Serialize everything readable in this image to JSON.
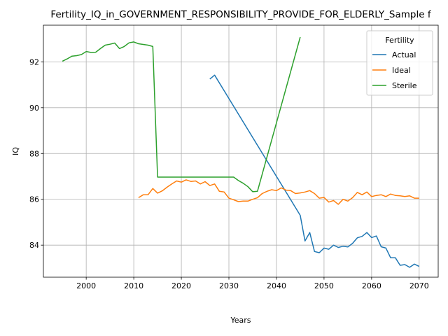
{
  "chart_data": {
    "type": "line",
    "title": "Fertility_IQ_in_GOVERNMENT_RESPONSIBILITY_PROVIDE_FOR_ELDERLY_Sample f",
    "xlabel": "Years",
    "ylabel": "IQ",
    "xlim": [
      1991,
      2074
    ],
    "ylim": [
      82.6,
      93.6
    ],
    "xticks": [
      2000,
      2010,
      2020,
      2030,
      2040,
      2050,
      2060,
      2070
    ],
    "yticks": [
      84,
      86,
      88,
      90,
      92
    ],
    "grid": true,
    "legend": {
      "title": "Fertility",
      "placement": "top-right"
    },
    "series": [
      {
        "name": "Actual",
        "color": "#1f77b4",
        "x": [
          2026,
          2027,
          2045,
          2046,
          2047,
          2048,
          2049,
          2050,
          2051,
          2052,
          2053,
          2054,
          2055,
          2056,
          2057,
          2058,
          2059,
          2060,
          2061,
          2062,
          2063,
          2064,
          2065,
          2066,
          2067,
          2068,
          2069,
          2070
        ],
        "y": [
          91.25,
          91.42,
          85.3,
          84.18,
          84.55,
          83.72,
          83.67,
          83.87,
          83.82,
          84.0,
          83.9,
          83.95,
          83.92,
          84.08,
          84.32,
          84.38,
          84.55,
          84.33,
          84.4,
          83.93,
          83.87,
          83.45,
          83.45,
          83.12,
          83.15,
          83.03,
          83.17,
          83.07
        ]
      },
      {
        "name": "Ideal",
        "color": "#ff7f0e",
        "x": [
          2011,
          2012,
          2013,
          2014,
          2015,
          2016,
          2017,
          2018,
          2019,
          2020,
          2021,
          2022,
          2023,
          2024,
          2025,
          2026,
          2027,
          2028,
          2029,
          2030,
          2031,
          2032,
          2033,
          2034,
          2035,
          2036,
          2037,
          2038,
          2039,
          2040,
          2041,
          2042,
          2043,
          2044,
          2045,
          2046,
          2047,
          2048,
          2049,
          2050,
          2051,
          2052,
          2053,
          2054,
          2055,
          2056,
          2057,
          2058,
          2059,
          2060,
          2061,
          2062,
          2063,
          2064,
          2065,
          2066,
          2067,
          2068,
          2069,
          2070
        ],
        "y": [
          86.07,
          86.2,
          86.2,
          86.47,
          86.27,
          86.37,
          86.53,
          86.67,
          86.8,
          86.75,
          86.85,
          86.78,
          86.8,
          86.67,
          86.77,
          86.6,
          86.67,
          86.35,
          86.32,
          86.05,
          85.98,
          85.9,
          85.92,
          85.92,
          86.0,
          86.07,
          86.25,
          86.35,
          86.42,
          86.38,
          86.5,
          86.4,
          86.38,
          86.25,
          86.28,
          86.32,
          86.38,
          86.25,
          86.05,
          86.08,
          85.88,
          85.95,
          85.78,
          86.0,
          85.92,
          86.07,
          86.3,
          86.2,
          86.32,
          86.12,
          86.17,
          86.2,
          86.12,
          86.23,
          86.17,
          86.15,
          86.12,
          86.15,
          86.05,
          86.05
        ]
      },
      {
        "name": "Sterile",
        "color": "#2ca02c",
        "x": [
          1995,
          1996,
          1997,
          1998,
          1999,
          2000,
          2001,
          2002,
          2003,
          2004,
          2005,
          2006,
          2007,
          2008,
          2009,
          2010,
          2011,
          2012,
          2013,
          2014,
          2015,
          2016,
          2017,
          2018,
          2019,
          2020,
          2021,
          2022,
          2023,
          2024,
          2025,
          2026,
          2027,
          2028,
          2029,
          2030,
          2031,
          2032,
          2033,
          2034,
          2035,
          2036,
          2045
        ],
        "y": [
          92.03,
          92.13,
          92.25,
          92.27,
          92.32,
          92.45,
          92.41,
          92.42,
          92.58,
          92.73,
          92.77,
          92.82,
          92.58,
          92.67,
          92.83,
          92.87,
          92.79,
          92.76,
          92.73,
          92.67,
          86.97,
          86.97,
          86.97,
          86.97,
          86.97,
          86.97,
          86.97,
          86.97,
          86.97,
          86.97,
          86.97,
          86.97,
          86.97,
          86.97,
          86.97,
          86.97,
          86.97,
          86.82,
          86.7,
          86.55,
          86.33,
          86.35,
          93.08
        ]
      }
    ]
  }
}
